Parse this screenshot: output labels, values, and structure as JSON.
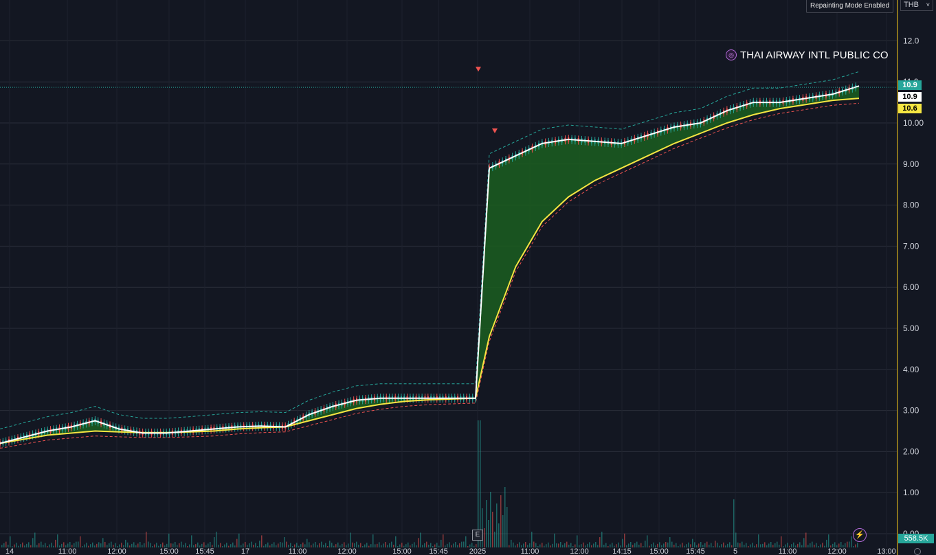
{
  "header": {
    "badge": "Repainting Mode Enabled",
    "currency": "THB",
    "currency_chevron": "˅",
    "symbol_name": "THAI AIRWAY INTL PUBLIC CO"
  },
  "price_tags": {
    "last": "10.9",
    "moving_average": "10.9",
    "ema": "10.6",
    "volume": "558.5K"
  },
  "markers": {
    "earnings": "E",
    "bolt": "⚡"
  },
  "colors": {
    "background": "#131722",
    "up": "#26a69a",
    "down": "#ef5350",
    "fill": "#1b5e20",
    "fast_line": "#ffffff",
    "slow_line": "#f5e642",
    "band_upper": "#26a69a",
    "band_lower": "#ef5350",
    "grid": "#2a2e39"
  },
  "chart_data": {
    "type": "line",
    "currency": "THB",
    "y_ticks": [
      "12.0",
      "11.0",
      "10.00",
      "9.00",
      "8.00",
      "7.00",
      "6.00",
      "5.00",
      "4.00",
      "3.00",
      "2.00",
      "1.00",
      "0.00"
    ],
    "ylim": [
      0,
      12.5
    ],
    "x_ticks": [
      "14",
      "11:00",
      "12:00",
      "15:00",
      "15:45",
      "17",
      "11:00",
      "12:00",
      "15:00",
      "15:45",
      "2025",
      "11:00",
      "12:00",
      "14:15",
      "15:00",
      "15:45",
      "5",
      "11:00",
      "12:00",
      "13:00"
    ],
    "series": [
      {
        "name": "",
        "values": [
          2.2,
          2.35,
          2.5,
          2.6,
          2.75,
          2.55,
          2.45,
          2.45,
          2.5,
          2.55,
          2.6,
          2.62,
          2.6,
          2.9,
          3.1,
          3.25,
          3.3,
          3.3,
          3.3,
          3.3,
          3.3,
          8.9,
          9.2,
          9.5,
          9.6,
          9.55,
          9.5,
          9.7,
          9.9,
          10.0,
          10.3,
          10.5,
          10.5,
          10.6,
          10.7,
          10.9
        ]
      },
      {
        "name": "",
        "values": [
          2.2,
          2.3,
          2.4,
          2.45,
          2.5,
          2.48,
          2.46,
          2.46,
          2.48,
          2.5,
          2.55,
          2.58,
          2.6,
          2.75,
          2.9,
          3.05,
          3.15,
          3.22,
          3.26,
          3.28,
          3.3,
          4.8,
          6.5,
          7.6,
          8.2,
          8.6,
          8.9,
          9.2,
          9.5,
          9.75,
          10.0,
          10.2,
          10.35,
          10.45,
          10.55,
          10.6
        ]
      }
    ],
    "markers_down": [
      [
        20,
        11.3
      ],
      [
        21,
        9.8
      ]
    ],
    "volume_max": 3.1
  }
}
